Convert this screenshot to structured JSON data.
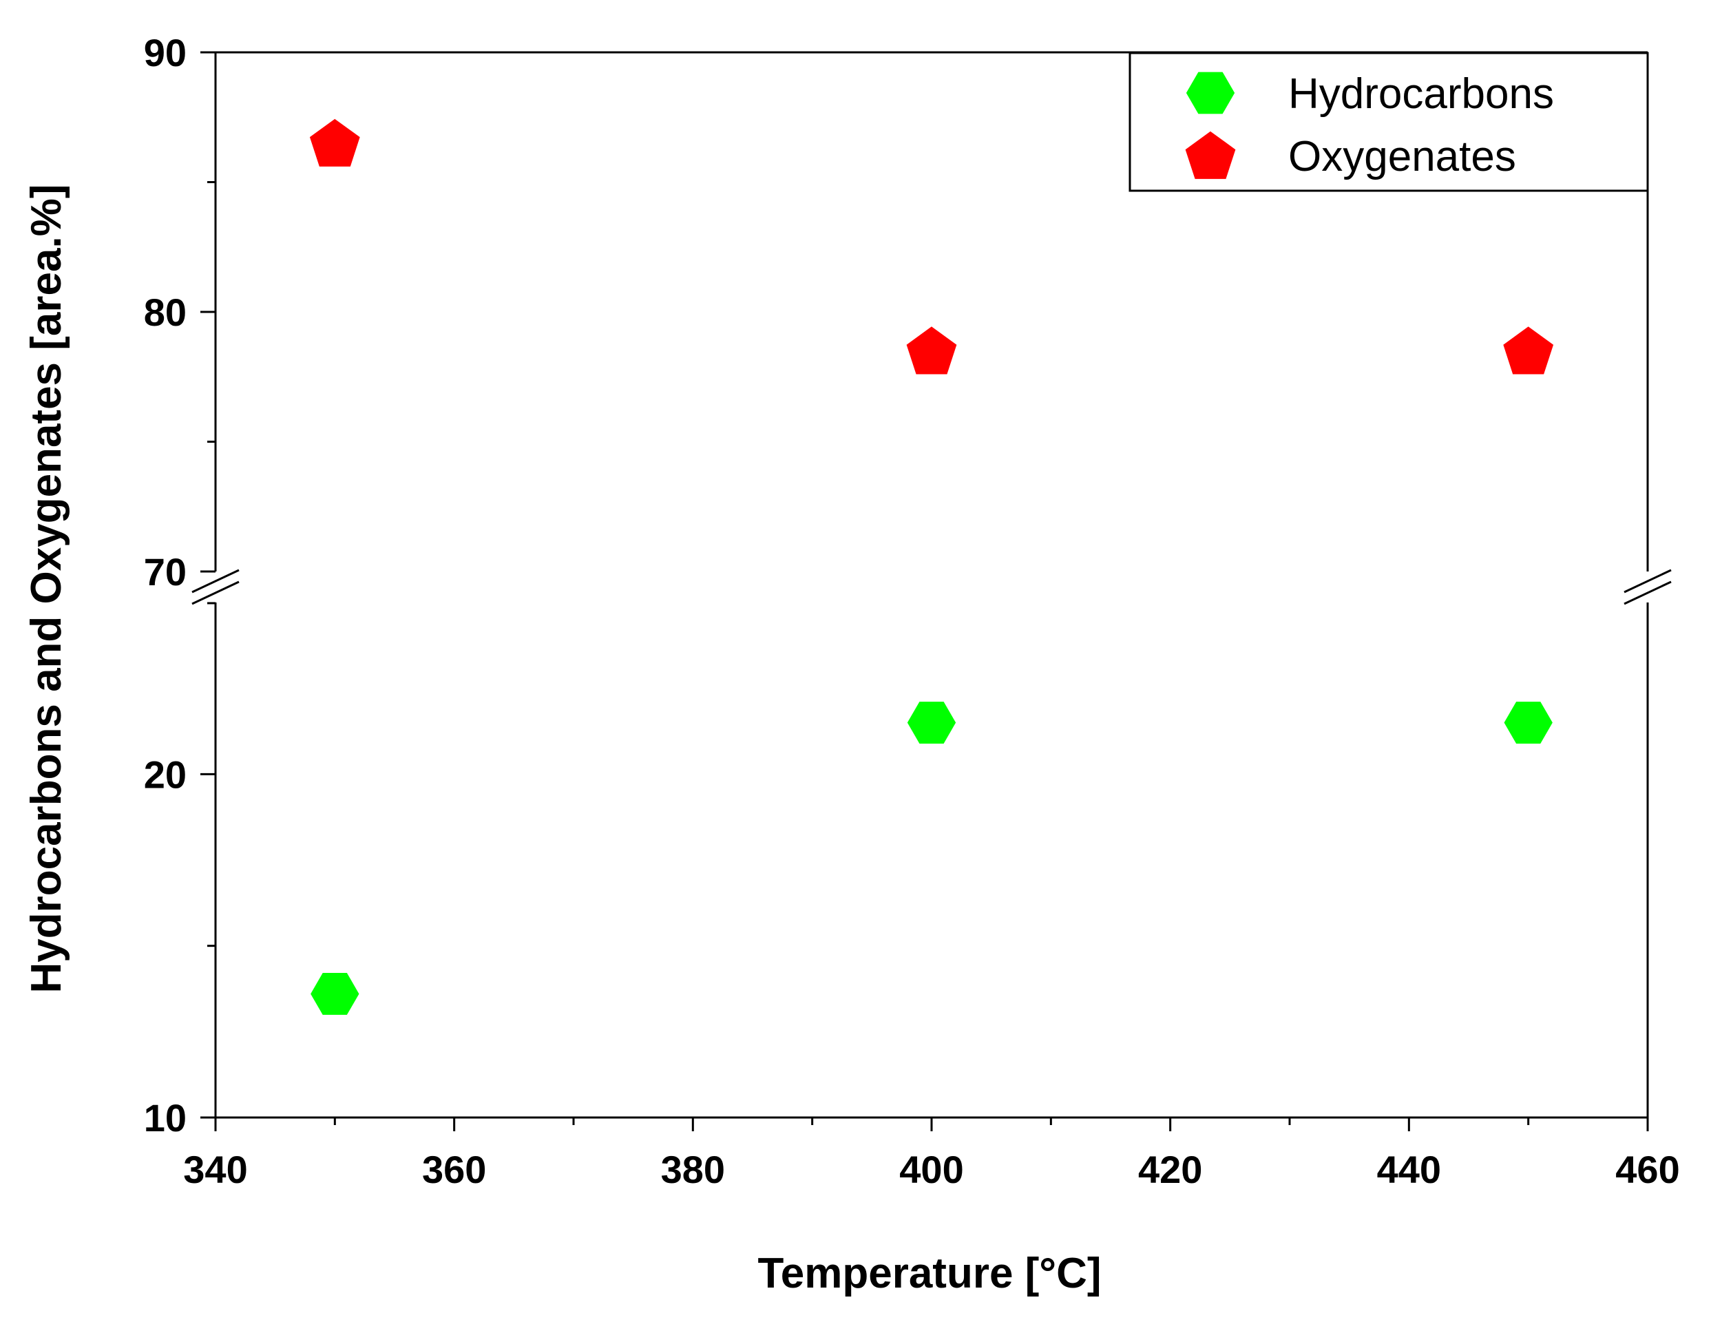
{
  "chart_data": {
    "type": "scatter",
    "title": "",
    "xlabel": "Temperature [°C]",
    "ylabel": "Hydrocarbons and Oxygenates [area.%]",
    "xlim": [
      340,
      460
    ],
    "x_ticks": [
      "340",
      "360",
      "380",
      "400",
      "420",
      "440",
      "460"
    ],
    "ylim": [
      10,
      90
    ],
    "y_break": [
      25,
      70
    ],
    "y_ticks": [
      "10",
      "20",
      "70",
      "80",
      "90"
    ],
    "grid": false,
    "legend_position": "top-right",
    "series": [
      {
        "name": "Hydrocarbons",
        "marker": "hexagon",
        "color": "#00ff00",
        "x": [
          350,
          400,
          450
        ],
        "y": [
          13.6,
          21.5,
          21.5
        ]
      },
      {
        "name": "Oxygenates",
        "marker": "pentagon",
        "color": "#ff0000",
        "x": [
          350,
          400,
          450
        ],
        "y": [
          86.5,
          78.5,
          78.5
        ]
      }
    ]
  }
}
